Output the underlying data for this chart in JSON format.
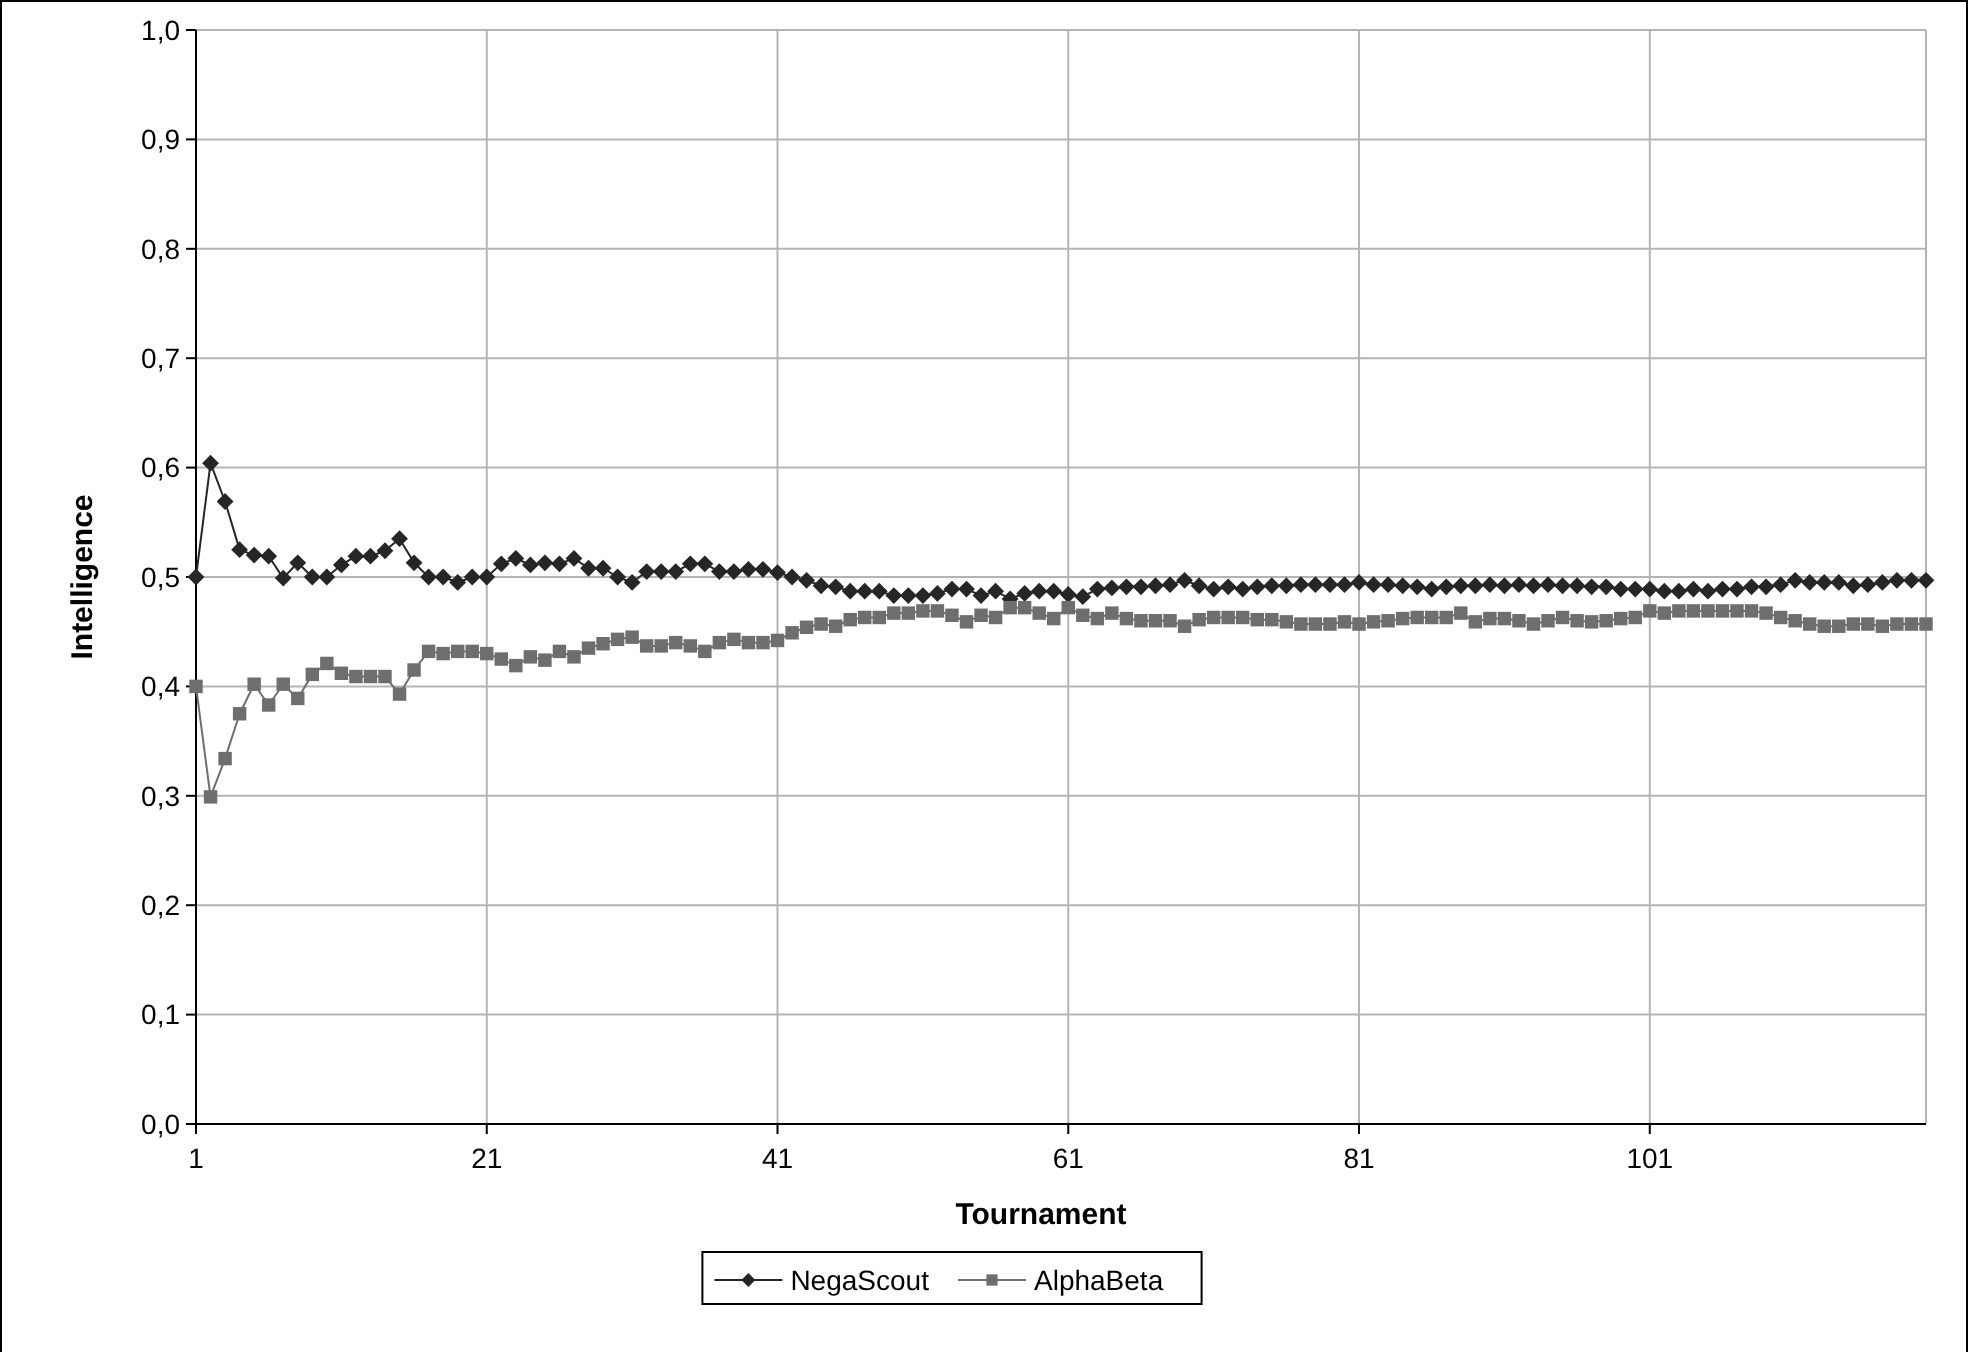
{
  "chart_data": {
    "type": "line",
    "xlabel": "Tournament",
    "ylabel": "Intelligence",
    "categories": [
      "1",
      null,
      null,
      null,
      null,
      null,
      null,
      null,
      null,
      null,
      null,
      null,
      null,
      null,
      null,
      null,
      null,
      null,
      null,
      null,
      "21",
      null,
      null,
      null,
      null,
      null,
      null,
      null,
      null,
      null,
      null,
      null,
      null,
      null,
      null,
      null,
      null,
      null,
      null,
      null,
      "41",
      null,
      null,
      null,
      null,
      null,
      null,
      null,
      null,
      null,
      null,
      null,
      null,
      null,
      null,
      null,
      null,
      null,
      null,
      null,
      "61",
      null,
      null,
      null,
      null,
      null,
      null,
      null,
      null,
      null,
      null,
      null,
      null,
      null,
      null,
      null,
      null,
      null,
      null,
      null,
      "81",
      null,
      null,
      null,
      null,
      null,
      null,
      null,
      null,
      null,
      null,
      null,
      null,
      null,
      null,
      null,
      null,
      null,
      null,
      null,
      "101",
      null,
      null,
      null,
      null,
      null,
      null,
      null,
      null,
      null,
      null,
      null,
      null,
      null,
      null,
      null,
      null,
      null,
      null,
      null
    ],
    "series": [
      {
        "name": "NegaScout",
        "color": "#262626",
        "marker": "diamond",
        "values": [
          0.5,
          0.604,
          0.569,
          0.525,
          0.52,
          0.519,
          0.499,
          0.513,
          0.5,
          0.5,
          0.511,
          0.519,
          0.519,
          0.524,
          0.535,
          0.513,
          0.5,
          0.5,
          0.495,
          0.5,
          0.5,
          0.512,
          0.517,
          0.511,
          0.513,
          0.512,
          0.517,
          0.508,
          0.508,
          0.5,
          0.495,
          0.505,
          0.505,
          0.505,
          0.512,
          0.512,
          0.505,
          0.505,
          0.507,
          0.507,
          0.504,
          0.5,
          0.497,
          0.492,
          0.491,
          0.487,
          0.487,
          0.487,
          0.483,
          0.483,
          0.483,
          0.485,
          0.489,
          0.489,
          0.483,
          0.487,
          0.48,
          0.485,
          0.487,
          0.487,
          0.484,
          0.482,
          0.489,
          0.49,
          0.491,
          0.491,
          0.492,
          0.493,
          0.497,
          0.492,
          0.489,
          0.491,
          0.489,
          0.491,
          0.492,
          0.492,
          0.493,
          0.493,
          0.493,
          0.493,
          0.495,
          0.493,
          0.493,
          0.492,
          0.491,
          0.489,
          0.491,
          0.492,
          0.492,
          0.493,
          0.492,
          0.493,
          0.492,
          0.493,
          0.492,
          0.492,
          0.491,
          0.491,
          0.489,
          0.489,
          0.489,
          0.487,
          0.487,
          0.489,
          0.487,
          0.489,
          0.489,
          0.491,
          0.491,
          0.493,
          0.497,
          0.495,
          0.495,
          0.495,
          0.492,
          0.493,
          0.495,
          0.497,
          0.497,
          0.497
        ]
      },
      {
        "name": "AlphaBeta",
        "color": "#6e6e6e",
        "marker": "square",
        "values": [
          0.4,
          0.299,
          0.334,
          0.375,
          0.402,
          0.383,
          0.402,
          0.389,
          0.411,
          0.421,
          0.412,
          0.409,
          0.409,
          0.409,
          0.393,
          0.415,
          0.432,
          0.43,
          0.432,
          0.432,
          0.43,
          0.425,
          0.419,
          0.427,
          0.424,
          0.432,
          0.427,
          0.435,
          0.439,
          0.443,
          0.445,
          0.437,
          0.437,
          0.44,
          0.437,
          0.432,
          0.44,
          0.443,
          0.44,
          0.44,
          0.442,
          0.449,
          0.454,
          0.457,
          0.455,
          0.461,
          0.463,
          0.463,
          0.467,
          0.467,
          0.469,
          0.469,
          0.465,
          0.459,
          0.465,
          0.463,
          0.472,
          0.472,
          0.467,
          0.462,
          0.472,
          0.465,
          0.462,
          0.467,
          0.462,
          0.46,
          0.46,
          0.46,
          0.455,
          0.461,
          0.463,
          0.463,
          0.463,
          0.461,
          0.461,
          0.459,
          0.457,
          0.457,
          0.457,
          0.459,
          0.457,
          0.459,
          0.46,
          0.462,
          0.463,
          0.463,
          0.463,
          0.467,
          0.459,
          0.462,
          0.462,
          0.46,
          0.457,
          0.46,
          0.463,
          0.46,
          0.459,
          0.46,
          0.462,
          0.463,
          0.469,
          0.467,
          0.469,
          0.469,
          0.469,
          0.469,
          0.469,
          0.469,
          0.467,
          0.463,
          0.46,
          0.457,
          0.455,
          0.455,
          0.457,
          0.457,
          0.455,
          0.457,
          0.457,
          0.457
        ]
      }
    ],
    "ylim": [
      0,
      1
    ],
    "yticks": [
      {
        "value": 0,
        "label": "0,0"
      },
      {
        "value": 0.1,
        "label": "0,1"
      },
      {
        "value": 0.2,
        "label": "0,2"
      },
      {
        "value": 0.3,
        "label": "0,3"
      },
      {
        "value": 0.4,
        "label": "0,4"
      },
      {
        "value": 0.5,
        "label": "0,5"
      },
      {
        "value": 0.6,
        "label": "0,6"
      },
      {
        "value": 0.7,
        "label": "0,7"
      },
      {
        "value": 0.8,
        "label": "0,8"
      },
      {
        "value": 0.9,
        "label": "0,9"
      },
      {
        "value": 1,
        "label": "1,0"
      }
    ],
    "grid": true,
    "legend": "bottom",
    "line_style": "solid"
  }
}
